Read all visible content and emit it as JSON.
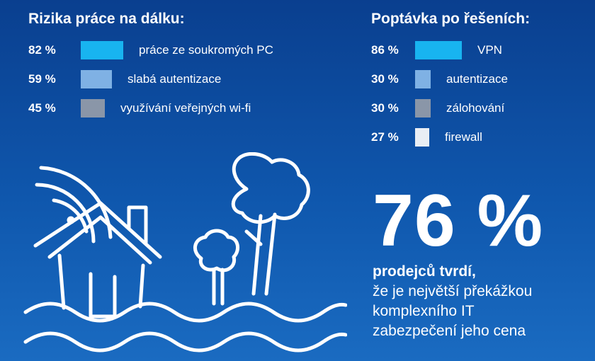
{
  "colors": {
    "background_top": "#0a3f8f",
    "background_bottom": "#1a6bc1",
    "series_1": "#18b4f0",
    "series_2": "#7fb1e4",
    "series_3": "#8a96a8",
    "series_4": "#e9eef4"
  },
  "chart_data": [
    {
      "type": "bar",
      "title": "Rizika práce na dálku:",
      "categories": [
        "práce ze soukromých PC",
        "slabá autentizace",
        "využívání veřejných wi-fi"
      ],
      "value_labels": [
        "82 %",
        "59 %",
        "45 %"
      ],
      "values": [
        82,
        59,
        45
      ],
      "colors": [
        "#18b4f0",
        "#7fb1e4",
        "#8a96a8"
      ]
    },
    {
      "type": "bar",
      "title": "Poptávka po řešeních:",
      "categories": [
        "VPN",
        "autentizace",
        "zálohování",
        "firewall"
      ],
      "value_labels": [
        "86 %",
        "30 %",
        "30 %",
        "27 %"
      ],
      "values": [
        86,
        30,
        30,
        27
      ],
      "colors": [
        "#18b4f0",
        "#7fb1e4",
        "#8a96a8",
        "#e9eef4"
      ]
    }
  ],
  "stat": {
    "value": "76 %",
    "strong": "prodejců tvrdí,",
    "lines": [
      "že je největší překážkou",
      "komplexního IT",
      "zabezpečení jeho cena"
    ]
  },
  "illustration": {
    "icons": [
      "wifi-icon",
      "house-icon",
      "tree-icon",
      "bush-icon",
      "waves-icon"
    ]
  }
}
